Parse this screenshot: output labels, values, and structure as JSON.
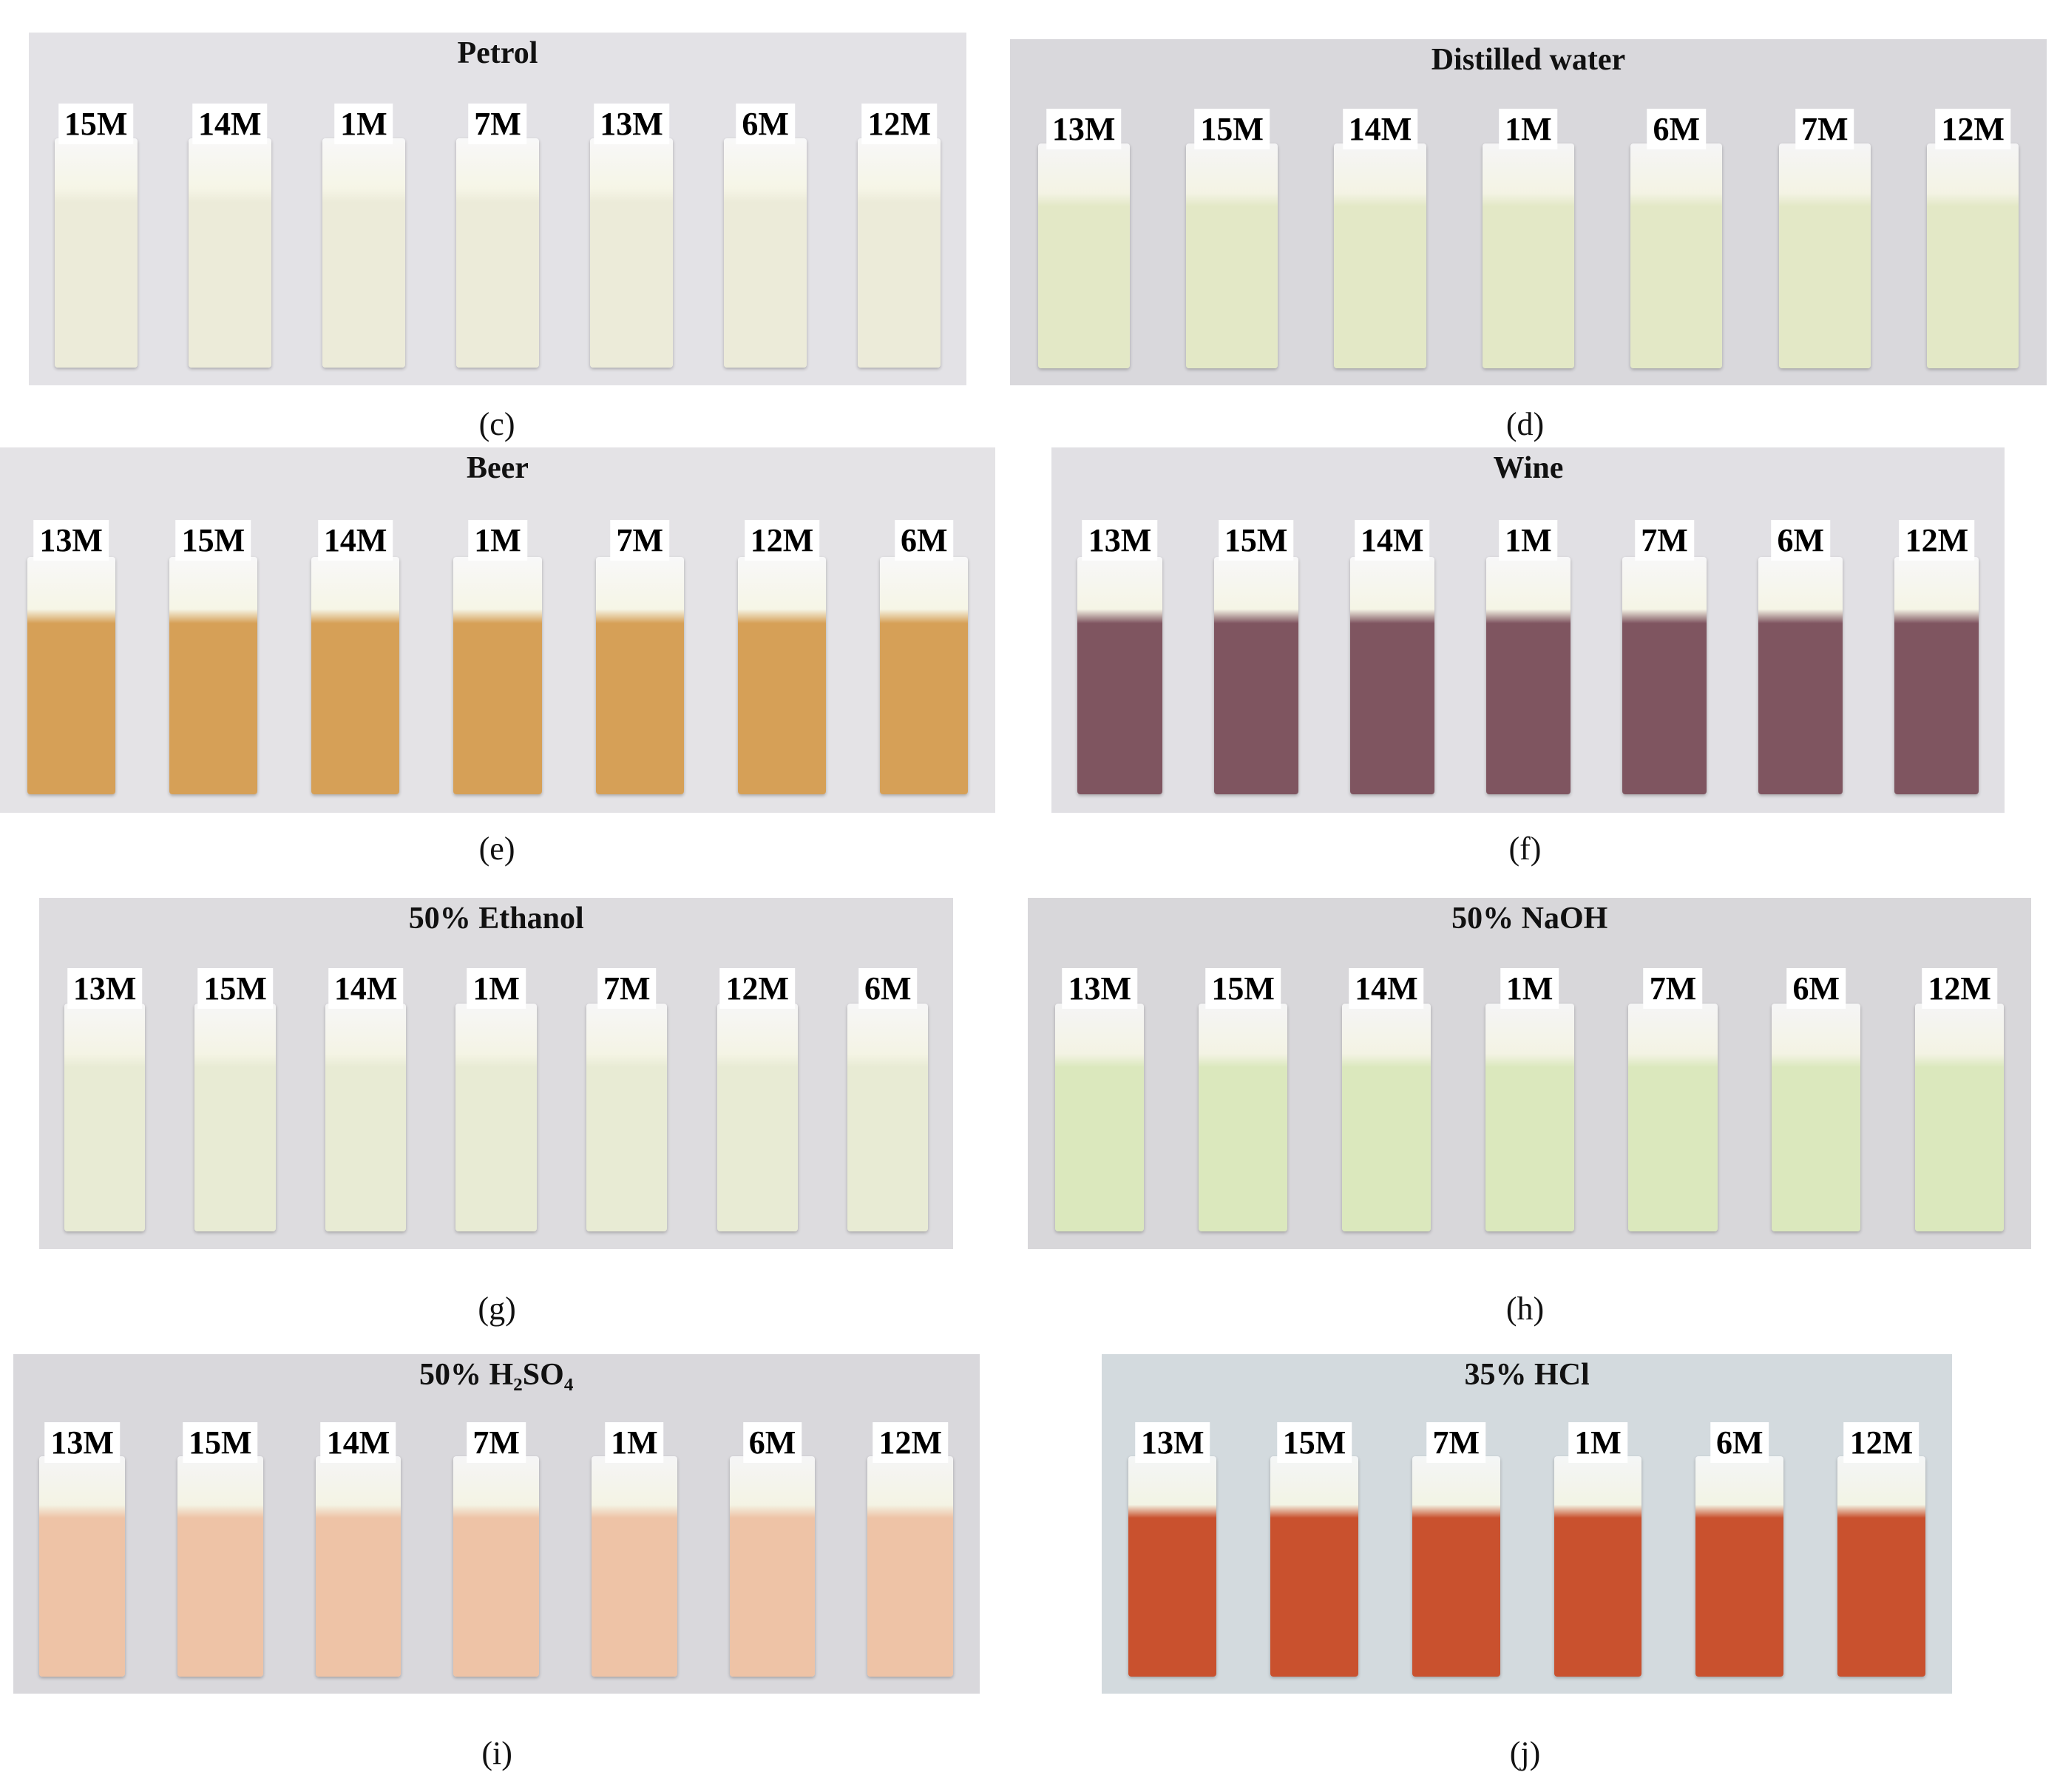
{
  "panels": [
    {
      "title": "Petrol",
      "caption": "(c)",
      "strip_color": "#ecebd9",
      "background": "#e3e2e6",
      "strips": [
        "15M",
        "14M",
        "1M",
        "7M",
        "13M",
        "6M",
        "12M"
      ]
    },
    {
      "title": "Distilled water",
      "caption": "(d)",
      "strip_color": "#e3e8c6",
      "background": "#d9d8dc",
      "strips": [
        "13M",
        "15M",
        "14M",
        "1M",
        "6M",
        "7M",
        "12M"
      ]
    },
    {
      "title": "Beer",
      "caption": "(e)",
      "strip_color": "#d6a057",
      "background": "#e4e3e6",
      "strips": [
        "13M",
        "15M",
        "14M",
        "1M",
        "7M",
        "12M",
        "6M"
      ]
    },
    {
      "title": "Wine",
      "caption": "(f)",
      "strip_color": "#7f5560",
      "background": "#e1e0e4",
      "strips": [
        "13M",
        "15M",
        "14M",
        "1M",
        "7M",
        "6M",
        "12M"
      ]
    },
    {
      "title": "50% Ethanol",
      "caption": "(g)",
      "strip_color": "#e8ebd4",
      "background": "#dddcdf",
      "strips": [
        "13M",
        "15M",
        "14M",
        "1M",
        "7M",
        "12M",
        "6M"
      ]
    },
    {
      "title": "50% NaOH",
      "caption": "(h)",
      "strip_color": "#dbe8bd",
      "background": "#d8d7da",
      "strips": [
        "13M",
        "15M",
        "14M",
        "1M",
        "7M",
        "6M",
        "12M"
      ]
    },
    {
      "title": "50% H₂SO₄",
      "caption": "(i)",
      "strip_color": "#eec3a6",
      "background": "#d9d8dc",
      "strips": [
        "13M",
        "15M",
        "14M",
        "7M",
        "1M",
        "6M",
        "12M"
      ]
    },
    {
      "title": "35% HCl",
      "caption": "(j)",
      "strip_color": "#c9512e",
      "background": "#d3dade",
      "strips": [
        "13M",
        "15M",
        "7M",
        "1M",
        "6M",
        "12M"
      ]
    }
  ]
}
